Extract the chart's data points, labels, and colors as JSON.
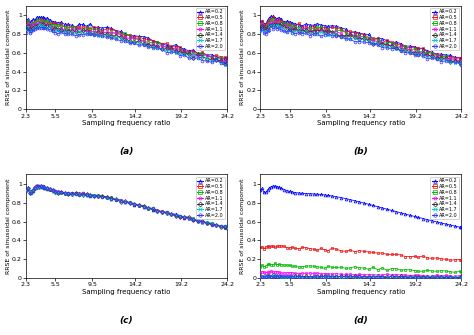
{
  "x_ticks": [
    2.3,
    5.5,
    9.5,
    14.2,
    19.2,
    24.2
  ],
  "x_tick_labels": [
    "2.3",
    "5.5",
    "9.5",
    "14.2",
    "19.2",
    "24.2"
  ],
  "xlim": [
    2.3,
    24.2
  ],
  "ylim": [
    0,
    1.1
  ],
  "yticks": [
    0,
    0.2,
    0.4,
    0.6,
    0.8,
    1
  ],
  "ytick_labels": [
    "0",
    "0.2",
    "0.4",
    "0.6",
    "0.8",
    "1"
  ],
  "ylabel": "RRSE of sinusoidal component",
  "xlabel": "Sampling frequency ratio",
  "ar_values": [
    0.2,
    0.5,
    0.8,
    1.1,
    1.4,
    1.7,
    2.0
  ],
  "colors": {
    "0.2": "#0000FF",
    "0.5": "#EE1111",
    "0.8": "#00BB00",
    "1.1": "#FF00FF",
    "1.4": "#333333",
    "1.7": "#00CCCC",
    "2.0": "#3333FF"
  },
  "markers": {
    "0.2": "^",
    "0.5": "s",
    "0.8": "s",
    "1.1": "p",
    "1.4": "D",
    "1.7": "x",
    "2.0": "o"
  },
  "subfig_labels": [
    "(a)",
    "(b)",
    "(c)",
    "(d)"
  ]
}
